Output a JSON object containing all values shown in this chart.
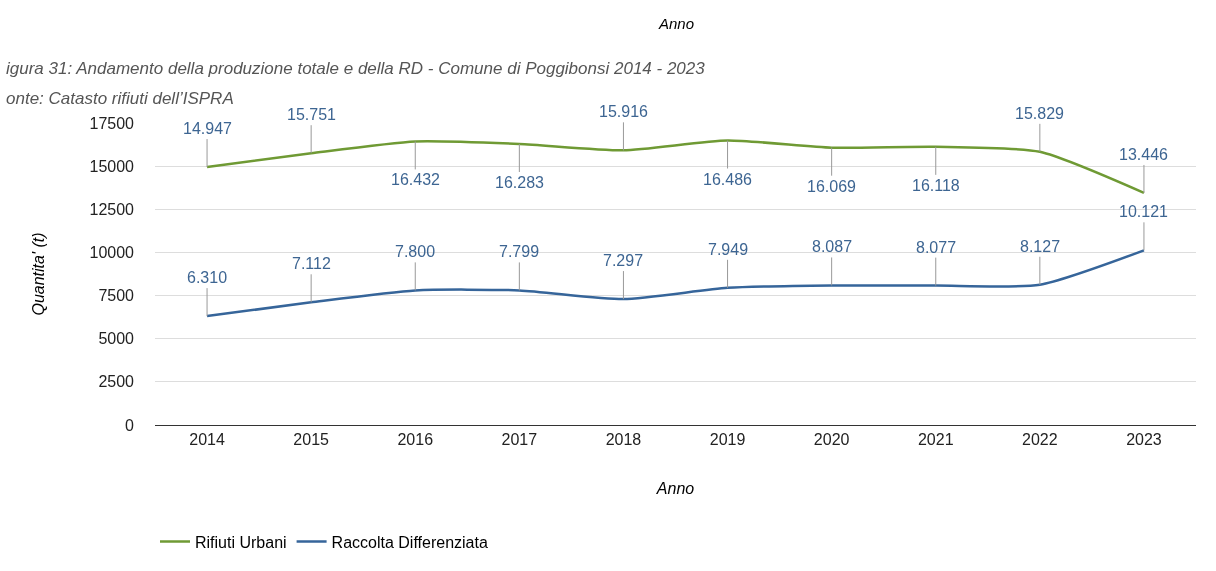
{
  "chart_data": {
    "type": "line",
    "title": "igura 31: Andamento della produzione totale e della RD - Comune di Poggibonsi 2014 - 2023",
    "subtitle": "onte: Catasto rifiuti dell’ISPRA",
    "annotations": [
      "Anno"
    ],
    "xlabel": "Anno",
    "ylabel": "Quantita' (t)",
    "categories": [
      "2014",
      "2015",
      "2016",
      "2017",
      "2018",
      "2019",
      "2020",
      "2021",
      "2022",
      "2023"
    ],
    "series": [
      {
        "name": "Rifiuti Urbani",
        "color": "#6f9a34",
        "values": [
          14947,
          15751,
          16432,
          16283,
          15916,
          16486,
          16069,
          16118,
          15829,
          13446
        ],
        "value_labels": [
          "14.947",
          "15.751",
          "16.432",
          "16.283",
          "15.916",
          "16.486",
          "16.069",
          "16.118",
          "15.829",
          "13.446"
        ]
      },
      {
        "name": "Raccolta Differenziata",
        "color": "#36659a",
        "values": [
          6310,
          7112,
          7800,
          7799,
          7297,
          7949,
          8087,
          8077,
          8127,
          10121
        ],
        "value_labels": [
          "6.310",
          "7.112",
          "7.800",
          "7.799",
          "7.297",
          "7.949",
          "8.087",
          "8.077",
          "8.127",
          "10.121"
        ]
      }
    ],
    "ylim": [
      0,
      17500
    ],
    "yticks": [
      0,
      2500,
      5000,
      7500,
      10000,
      12500,
      15000,
      17500
    ],
    "grid": "y",
    "legend": "bottom left",
    "marker": "none",
    "line_style": "solid"
  }
}
